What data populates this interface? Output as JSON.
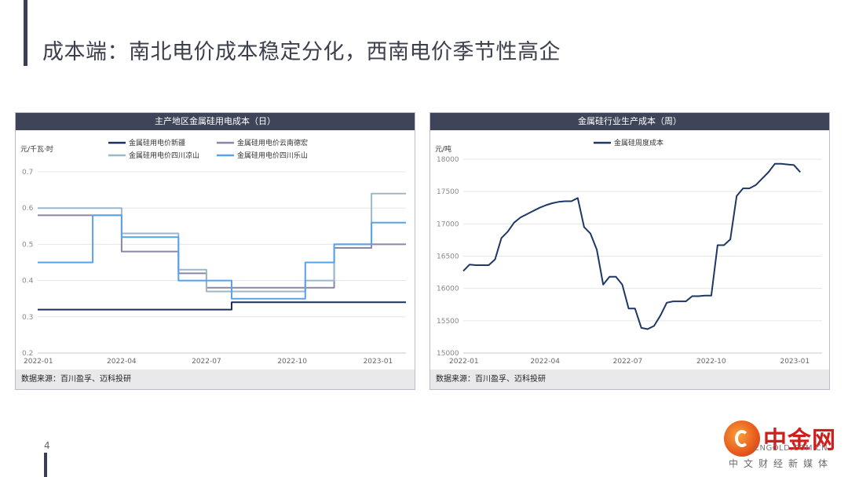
{
  "page": {
    "title": "成本端：南北电价成本稳定分化，西南电价季节性高企",
    "page_number": "4"
  },
  "logo": {
    "cn": "中金网",
    "en": "CNGOLD.COM.CN",
    "sub": "中文财经新媒体"
  },
  "chart_data": [
    {
      "type": "line",
      "step": true,
      "title": "主产地区金属硅用电成本（日）",
      "ylabel": "元/千瓦·时",
      "ylim": [
        0.2,
        0.7
      ],
      "yticks": [
        "0.2",
        "0.3",
        "0.4",
        "0.5",
        "0.6",
        "0.7"
      ],
      "xticks": [
        "2022-01",
        "2022-04",
        "2022-07",
        "2022-10",
        "2023-01"
      ],
      "source": "数据来源：百川盈孚、迈科投研",
      "series": [
        {
          "name": "金属硅用电价新疆",
          "color": "#1c2f5c",
          "points": [
            [
              "2022-01-01",
              0.32
            ],
            [
              "2022-07-28",
              0.32
            ],
            [
              "2022-07-28",
              0.34
            ],
            [
              "2023-01-31",
              0.34
            ]
          ]
        },
        {
          "name": "金属硅用电价云南德宏",
          "color": "#8a87a6",
          "points": [
            [
              "2022-01-01",
              0.58
            ],
            [
              "2022-04-01",
              0.58
            ],
            [
              "2022-04-01",
              0.48
            ],
            [
              "2022-06-01",
              0.48
            ],
            [
              "2022-06-01",
              0.42
            ],
            [
              "2022-07-01",
              0.42
            ],
            [
              "2022-07-01",
              0.38
            ],
            [
              "2022-11-15",
              0.38
            ],
            [
              "2022-11-15",
              0.49
            ],
            [
              "2022-12-25",
              0.49
            ],
            [
              "2022-12-25",
              0.5
            ],
            [
              "2023-01-31",
              0.5
            ]
          ]
        },
        {
          "name": "金属硅用电价四川凉山",
          "color": "#9bb8c8",
          "points": [
            [
              "2022-01-01",
              0.6
            ],
            [
              "2022-04-01",
              0.6
            ],
            [
              "2022-04-01",
              0.53
            ],
            [
              "2022-06-01",
              0.53
            ],
            [
              "2022-06-01",
              0.43
            ],
            [
              "2022-07-01",
              0.43
            ],
            [
              "2022-07-01",
              0.37
            ],
            [
              "2022-10-15",
              0.37
            ],
            [
              "2022-10-15",
              0.4
            ],
            [
              "2022-11-15",
              0.4
            ],
            [
              "2022-11-15",
              0.5
            ],
            [
              "2022-12-25",
              0.5
            ],
            [
              "2022-12-25",
              0.64
            ],
            [
              "2023-01-31",
              0.64
            ]
          ]
        },
        {
          "name": "金属硅用电价四川乐山",
          "color": "#5aa2e8",
          "points": [
            [
              "2022-01-01",
              0.45
            ],
            [
              "2022-03-01",
              0.45
            ],
            [
              "2022-03-01",
              0.58
            ],
            [
              "2022-04-01",
              0.58
            ],
            [
              "2022-04-01",
              0.52
            ],
            [
              "2022-06-01",
              0.52
            ],
            [
              "2022-06-01",
              0.4
            ],
            [
              "2022-07-28",
              0.4
            ],
            [
              "2022-07-28",
              0.35
            ],
            [
              "2022-10-15",
              0.35
            ],
            [
              "2022-10-15",
              0.45
            ],
            [
              "2022-11-15",
              0.45
            ],
            [
              "2022-11-15",
              0.5
            ],
            [
              "2022-12-25",
              0.5
            ],
            [
              "2022-12-25",
              0.56
            ],
            [
              "2023-01-31",
              0.56
            ]
          ]
        }
      ]
    },
    {
      "type": "line",
      "title": "金属硅行业生产成本（周）",
      "ylabel": "元/吨",
      "ylim": [
        15000,
        18000
      ],
      "yticks": [
        "15000",
        "15500",
        "16000",
        "16500",
        "17000",
        "17500",
        "18000"
      ],
      "xticks": [
        "2022-01",
        "2022-04",
        "2022-07",
        "2022-10",
        "2023-01"
      ],
      "source": "数据来源：百川盈孚、迈科投研",
      "series": [
        {
          "name": "金属硅周度成本",
          "color": "#1f3764",
          "points": [
            [
              "2022-01-01",
              16270
            ],
            [
              "2022-01-08",
              16370
            ],
            [
              "2022-01-15",
              16360
            ],
            [
              "2022-01-22",
              16360
            ],
            [
              "2022-01-29",
              16360
            ],
            [
              "2022-02-05",
              16450
            ],
            [
              "2022-02-12",
              16780
            ],
            [
              "2022-02-19",
              16880
            ],
            [
              "2022-02-26",
              17020
            ],
            [
              "2022-03-05",
              17100
            ],
            [
              "2022-03-12",
              17150
            ],
            [
              "2022-03-19",
              17200
            ],
            [
              "2022-03-26",
              17250
            ],
            [
              "2022-04-02",
              17290
            ],
            [
              "2022-04-09",
              17320
            ],
            [
              "2022-04-16",
              17340
            ],
            [
              "2022-04-23",
              17350
            ],
            [
              "2022-04-30",
              17350
            ],
            [
              "2022-05-07",
              17400
            ],
            [
              "2022-05-14",
              16950
            ],
            [
              "2022-05-21",
              16850
            ],
            [
              "2022-05-28",
              16600
            ],
            [
              "2022-06-04",
              16060
            ],
            [
              "2022-06-11",
              16180
            ],
            [
              "2022-06-18",
              16180
            ],
            [
              "2022-06-25",
              16060
            ],
            [
              "2022-07-02",
              15690
            ],
            [
              "2022-07-09",
              15690
            ],
            [
              "2022-07-16",
              15390
            ],
            [
              "2022-07-23",
              15370
            ],
            [
              "2022-07-30",
              15420
            ],
            [
              "2022-08-06",
              15580
            ],
            [
              "2022-08-13",
              15780
            ],
            [
              "2022-08-20",
              15800
            ],
            [
              "2022-08-27",
              15800
            ],
            [
              "2022-09-03",
              15800
            ],
            [
              "2022-09-10",
              15880
            ],
            [
              "2022-09-17",
              15880
            ],
            [
              "2022-09-24",
              15890
            ],
            [
              "2022-10-01",
              15890
            ],
            [
              "2022-10-08",
              16670
            ],
            [
              "2022-10-15",
              16670
            ],
            [
              "2022-10-22",
              16760
            ],
            [
              "2022-10-29",
              17430
            ],
            [
              "2022-11-05",
              17550
            ],
            [
              "2022-11-12",
              17550
            ],
            [
              "2022-11-19",
              17600
            ],
            [
              "2022-11-26",
              17700
            ],
            [
              "2022-12-03",
              17800
            ],
            [
              "2022-12-10",
              17930
            ],
            [
              "2022-12-17",
              17930
            ],
            [
              "2022-12-24",
              17920
            ],
            [
              "2022-12-31",
              17910
            ],
            [
              "2023-01-07",
              17800
            ]
          ]
        }
      ]
    }
  ]
}
